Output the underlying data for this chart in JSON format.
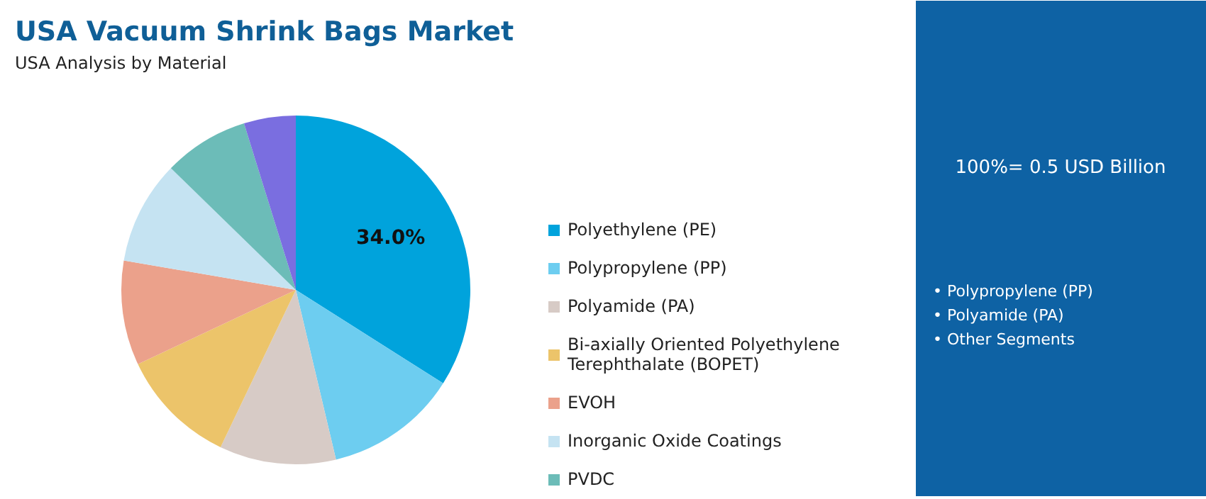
{
  "chart_data": {
    "type": "pie",
    "title": "USA Vacuum Shrink Bags Market",
    "subtitle": "USA Analysis by Material",
    "categories": [
      "Polyethylene (PE)",
      "Polypropylene (PP)",
      "Polyamide (PA)",
      "Bi-axially Oriented Polyethylene Terephthalate (BOPET)",
      "EVOH",
      "Inorganic Oxide Coatings",
      "PVDC",
      null
    ],
    "values": [
      34.0,
      12.3,
      10.8,
      10.9,
      9.7,
      9.6,
      7.9,
      4.8
    ],
    "colors": [
      "#00a3dc",
      "#6dcdf0",
      "#d7cbc6",
      "#ecc46a",
      "#eba18b",
      "#c5e3f2",
      "#6cbcb8",
      "#7a6ee0"
    ],
    "value_labels": [
      "34.0%",
      null,
      null,
      null,
      null,
      null,
      null,
      null
    ],
    "legend": "right",
    "annotations": [
      "100%= 0.5 USD Billion",
      "• Polypropylene (PP)",
      "• Polyamide (PA)",
      "• Other Segments"
    ]
  }
}
